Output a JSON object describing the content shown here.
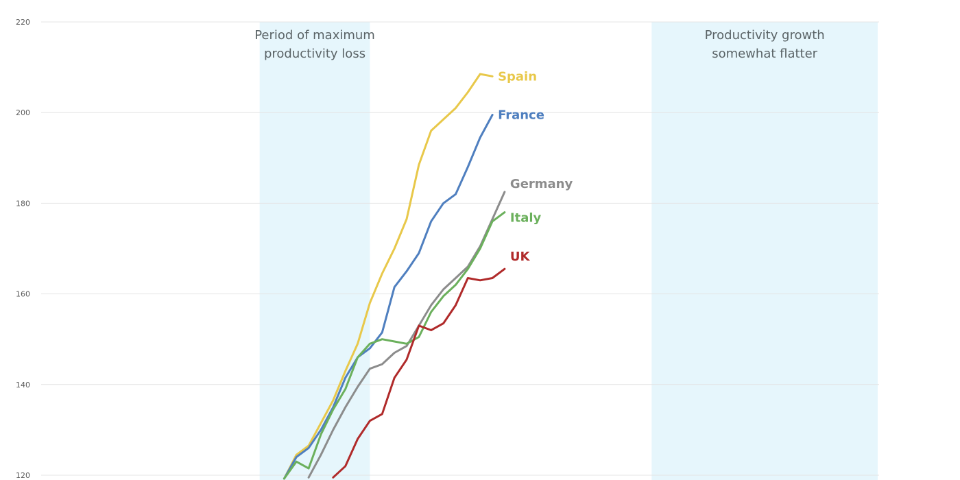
{
  "chart_data": {
    "type": "line",
    "title": "",
    "xlabel": "",
    "ylabel": "",
    "ylim": [
      120,
      220
    ],
    "yticks": [
      120,
      140,
      160,
      180,
      200,
      220
    ],
    "grid": true,
    "x": [
      1,
      2,
      3,
      4,
      5,
      6,
      7,
      8,
      9,
      10,
      11,
      12,
      13,
      14,
      15,
      16,
      17,
      18,
      19,
      20,
      21,
      22,
      23,
      24,
      25,
      26,
      27,
      28,
      29,
      30,
      31,
      32,
      33,
      34,
      35,
      36,
      37,
      38,
      39,
      40,
      41,
      42,
      43,
      44,
      45,
      46,
      47,
      48,
      49,
      50,
      51,
      52,
      53,
      54,
      55,
      56,
      57,
      58,
      59,
      60
    ],
    "xlim": [
      1,
      60
    ],
    "shaded_regions": [
      {
        "start": 11,
        "end": 20,
        "label_lines": [
          "Period of maximum",
          "productivity loss"
        ]
      },
      {
        "start": 43,
        "end": 64,
        "label_lines": [
          "Productivity growth",
          "somewhat flatter"
        ]
      }
    ],
    "series": [
      {
        "name": "Spain",
        "color": "#e8c84a",
        "values": [
          null,
          null,
          null,
          null,
          null,
          null,
          null,
          null,
          null,
          null,
          null,
          null,
          119.0,
          124.5,
          126.5,
          131.5,
          136.5,
          143.0,
          149.0,
          158.0,
          164.5,
          170.0,
          176.5,
          188.5,
          196.0,
          198.5,
          201.0,
          204.5,
          208.5,
          208.0,
          null,
          null,
          null,
          null,
          null,
          null,
          null,
          null,
          null,
          null,
          null,
          null,
          null,
          null,
          null,
          null,
          null,
          null,
          null,
          null,
          null,
          null,
          null,
          null,
          null,
          null,
          null,
          null,
          null,
          null
        ]
      },
      {
        "name": "France",
        "color": "#4f7fbf",
        "values": [
          null,
          null,
          null,
          null,
          null,
          null,
          null,
          null,
          null,
          null,
          null,
          null,
          118.0,
          124.0,
          126.0,
          130.0,
          135.0,
          141.5,
          146.0,
          148.0,
          151.5,
          161.5,
          165.0,
          169.0,
          176.0,
          180.0,
          182.0,
          188.0,
          194.5,
          199.5,
          null,
          null,
          null,
          null,
          null,
          null,
          null,
          null,
          null,
          null,
          null,
          null,
          null,
          null,
          null,
          null,
          null,
          null,
          null,
          null,
          null,
          null,
          null,
          null,
          null,
          null,
          null,
          null,
          null,
          null
        ]
      },
      {
        "name": "Germany",
        "color": "#8c8c8c",
        "values": [
          null,
          null,
          null,
          null,
          null,
          null,
          null,
          null,
          null,
          null,
          null,
          null,
          null,
          null,
          119.5,
          124.5,
          130.0,
          135.0,
          139.5,
          143.5,
          144.5,
          147.0,
          148.5,
          153.0,
          157.5,
          161.0,
          163.5,
          166.0,
          170.5,
          176.5,
          182.5,
          null,
          null,
          null,
          null,
          null,
          null,
          null,
          null,
          null,
          null,
          null,
          null,
          null,
          null,
          null,
          null,
          null,
          null,
          null,
          null,
          null,
          null,
          null,
          null,
          null,
          null,
          null,
          null,
          null
        ]
      },
      {
        "name": "Italy",
        "color": "#6bb05c",
        "values": [
          null,
          null,
          null,
          null,
          null,
          null,
          null,
          null,
          null,
          null,
          null,
          null,
          118.5,
          123.0,
          121.5,
          129.0,
          134.5,
          139.0,
          146.0,
          149.0,
          150.0,
          149.5,
          149.0,
          150.5,
          156.0,
          159.5,
          162.0,
          165.5,
          170.0,
          176.0,
          178.0,
          null,
          null,
          null,
          null,
          null,
          null,
          null,
          null,
          null,
          null,
          null,
          null,
          null,
          null,
          null,
          null,
          null,
          null,
          null,
          null,
          null,
          null,
          null,
          null,
          null,
          null,
          null,
          null,
          null
        ]
      },
      {
        "name": "UK",
        "color": "#b02a2a",
        "values": [
          null,
          null,
          null,
          null,
          null,
          null,
          null,
          null,
          null,
          null,
          null,
          null,
          null,
          null,
          null,
          null,
          119.5,
          122.0,
          128.0,
          132.0,
          133.5,
          141.5,
          145.5,
          153.0,
          152.0,
          153.5,
          157.5,
          163.5,
          163.0,
          163.5,
          165.5,
          null,
          null,
          null,
          null,
          null,
          null,
          null,
          null,
          null,
          null,
          null,
          null,
          null,
          null,
          null,
          null,
          null,
          null,
          null,
          null,
          null,
          null,
          null,
          null,
          null,
          null,
          null,
          null,
          null
        ]
      }
    ]
  }
}
